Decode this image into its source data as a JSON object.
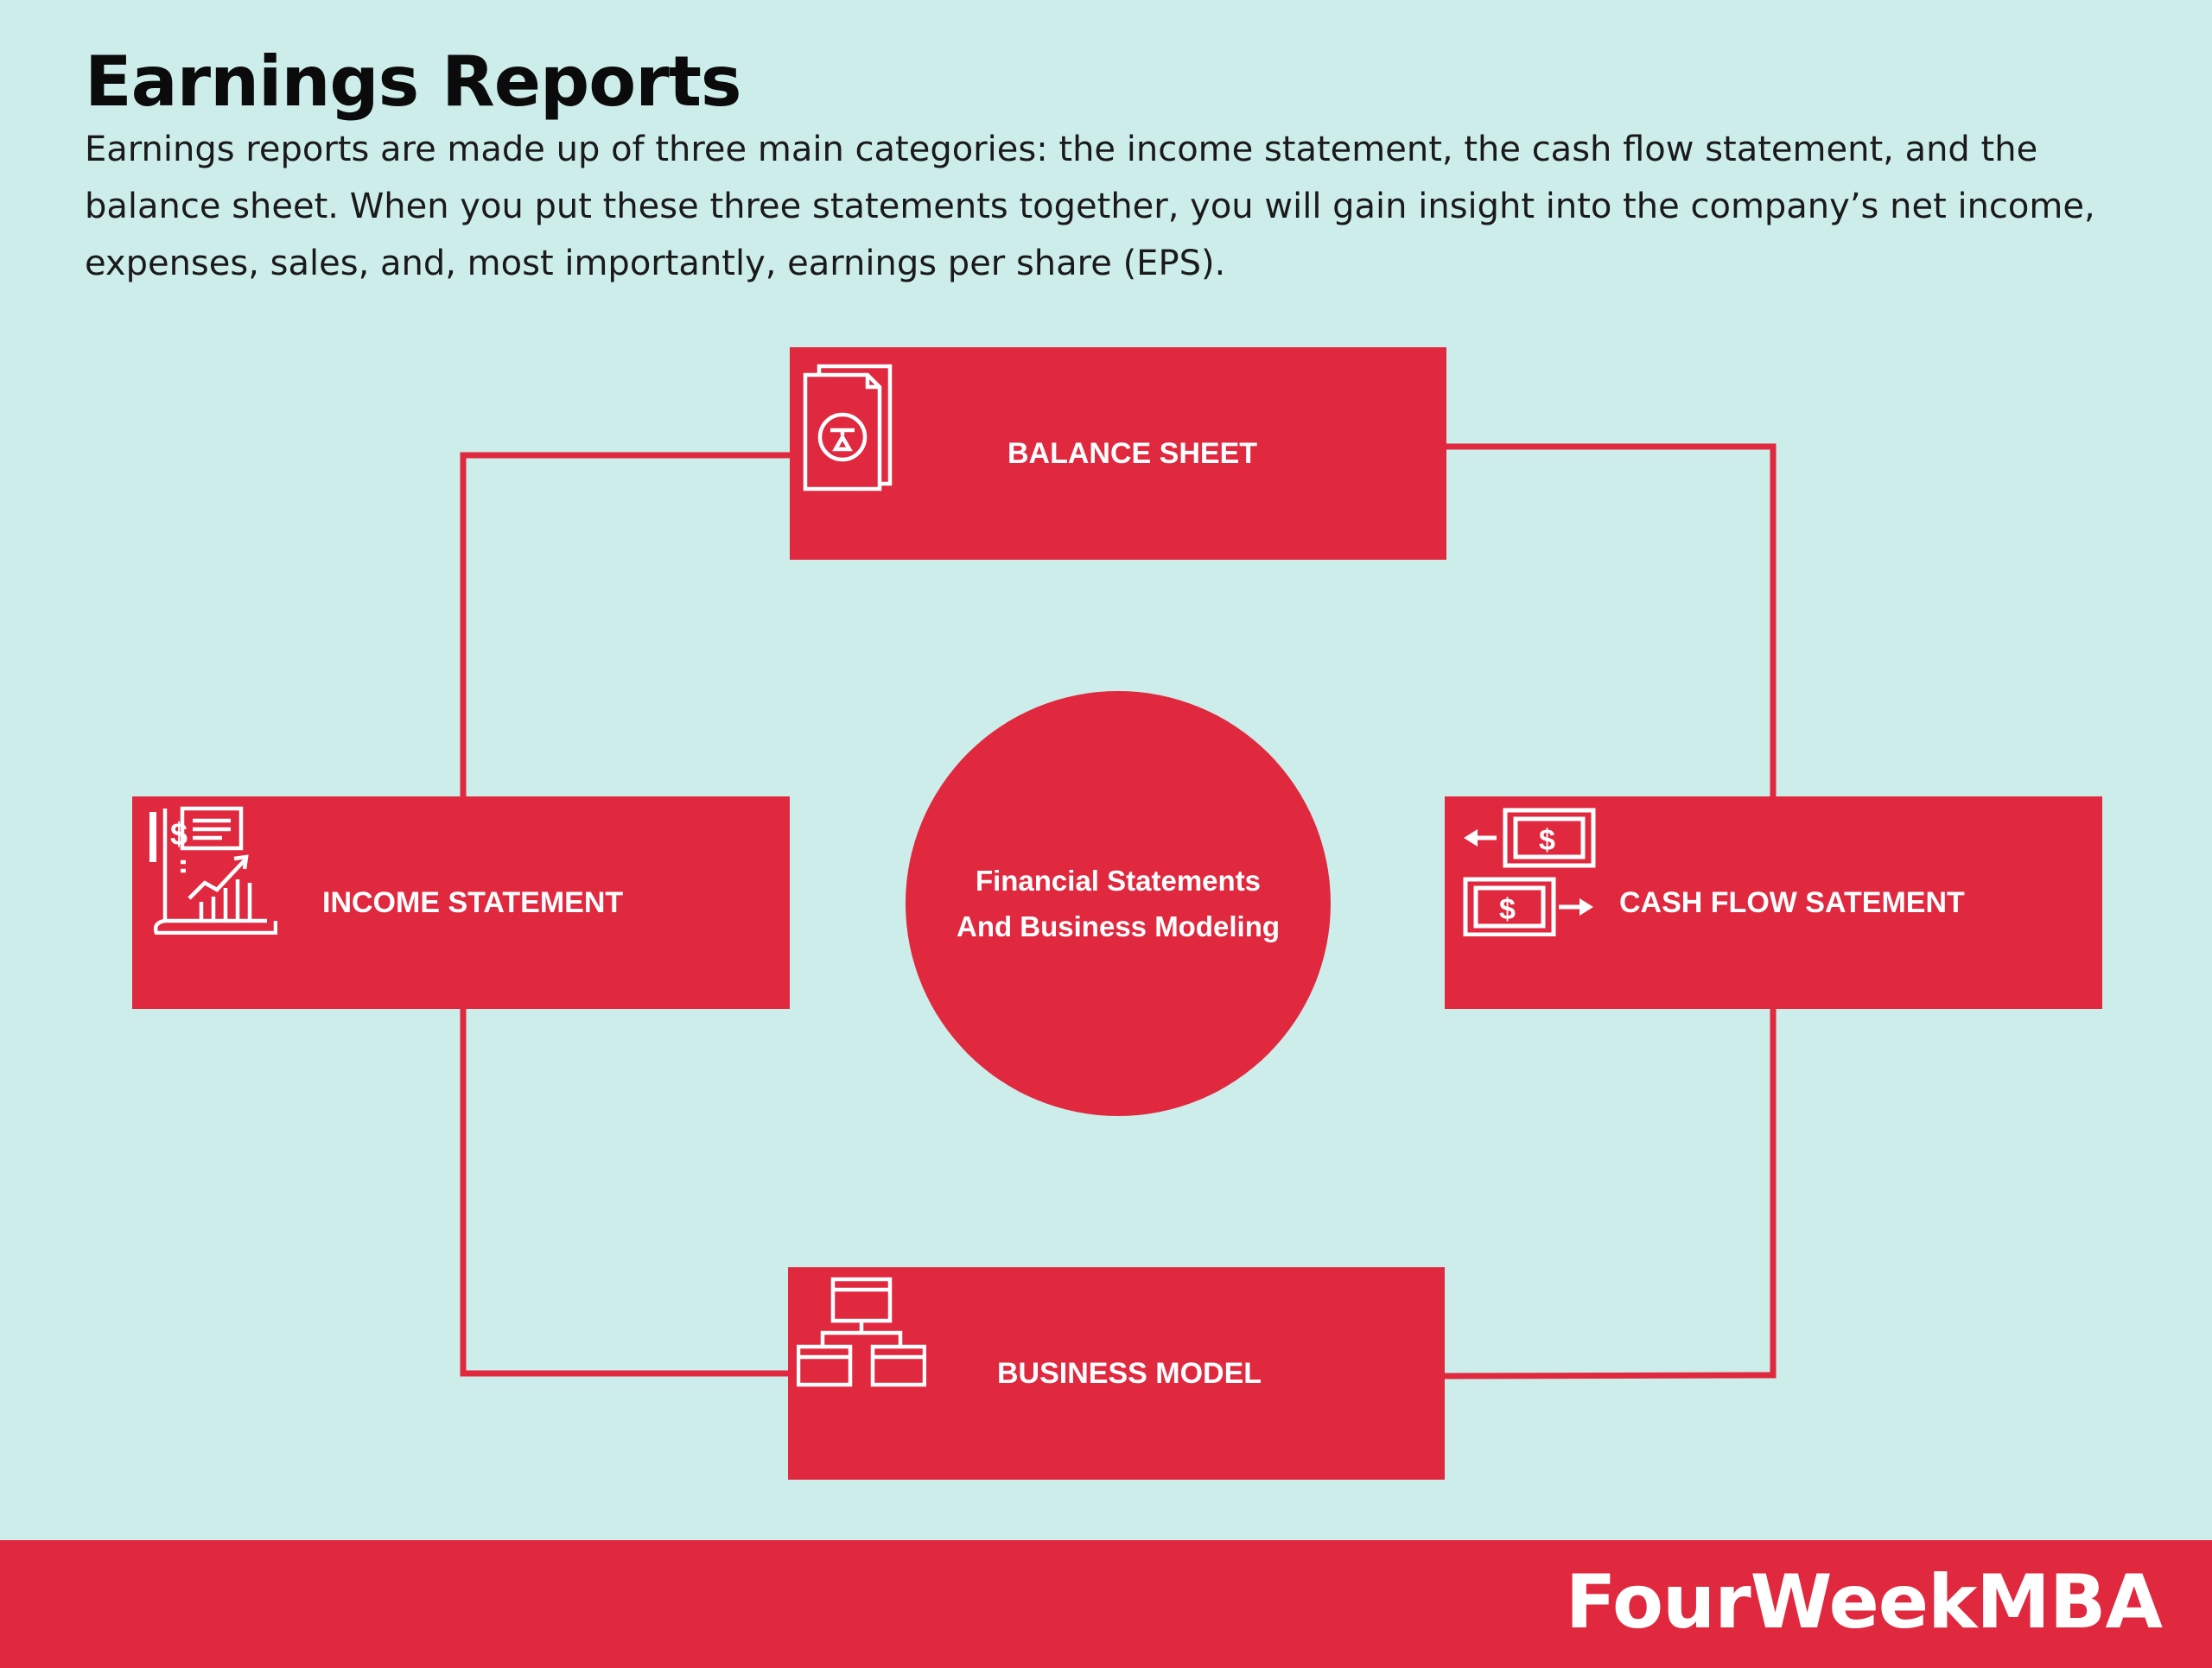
{
  "header": {
    "title": "Earnings Reports",
    "description": "Earnings reports are made up of three main categories: the income statement, the cash flow statement, and the balance sheet. When you put these three statements together, you will gain insight into the company’s net income, expenses, sales, and, most importantly, earnings per share (EPS)."
  },
  "diagram": {
    "center": "Financial Statements And Business Modeling",
    "nodes": {
      "balance_sheet": "BALANCE SHEET",
      "income_statement": "INCOME STATEMENT",
      "cash_flow": "CASH FLOW SATEMENT",
      "business_model": "BUSINESS MODEL"
    },
    "icons": {
      "balance_sheet": "document-scale-icon",
      "income_statement": "financial-report-chart-icon",
      "cash_flow": "money-transfer-icon",
      "business_model": "hierarchy-icon"
    }
  },
  "footer": {
    "brand": "FourWeekMBA"
  },
  "colors": {
    "accent": "#e0283f",
    "background": "#cdedea",
    "text": "#0b0b0b"
  }
}
